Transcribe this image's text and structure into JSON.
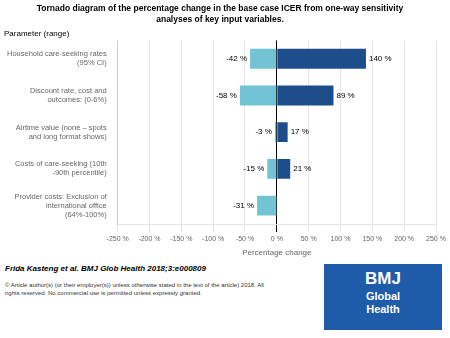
{
  "chart_data": {
    "type": "bar",
    "orientation": "horizontal",
    "stacked": true,
    "title": "Tornado diagram of the percentage change in the base case ICER from one-way sensitivity\nanalyses of key input variables.",
    "xlabel": "Percentage change",
    "ylabel": "Parameter (range)",
    "categories": [
      "Household care-seeking rates (95% CI)",
      "Discount rate, cost and outcomes: (0-6%)",
      "Airtime value (none – spots and long format shows)",
      "Costs of care-seeking (10th -90th percentile)",
      "Provider costs: Exclusion of international office (64%-100%)"
    ],
    "series": [
      {
        "color": "#72c4d4",
        "values": [
          -42,
          -58,
          -3,
          -15,
          -31
        ],
        "value_labels": [
          "-42 %",
          "-58 %",
          "-3 %",
          "-15 %",
          "-31 %"
        ]
      },
      {
        "color": "#1e4d8c",
        "values": [
          140,
          89,
          17,
          21,
          0
        ],
        "value_labels": [
          "140 %",
          "89 %",
          "17 %",
          "21 %",
          null
        ]
      }
    ],
    "xlim": [
      -250,
      250
    ],
    "xticks": [
      {
        "value": -250,
        "label": "-250 %"
      },
      {
        "value": -200,
        "label": "-200 %"
      },
      {
        "value": -150,
        "label": "-150 %"
      },
      {
        "value": -100,
        "label": "-100 %"
      },
      {
        "value": -50,
        "label": "-50 %"
      },
      {
        "value": 0,
        "label": "0 %"
      },
      {
        "value": 50,
        "label": "50 %"
      },
      {
        "value": 100,
        "label": "100 %"
      },
      {
        "value": 150,
        "label": "150 %"
      },
      {
        "value": 200,
        "label": "200 %"
      },
      {
        "value": 250,
        "label": "250 %"
      }
    ],
    "grid": true,
    "data_labels": true,
    "annotations": [
      "Frida Kasteng et al. BMJ Glob Health 2018;3:e000809",
      "© Article author(s) (or their employer(s)) unless otherwise stated in the text of the article) 2018. All\nrights reserved. No commercial use is permitted unless expressly granted.",
      "BMJ",
      "Global",
      "Health"
    ]
  }
}
